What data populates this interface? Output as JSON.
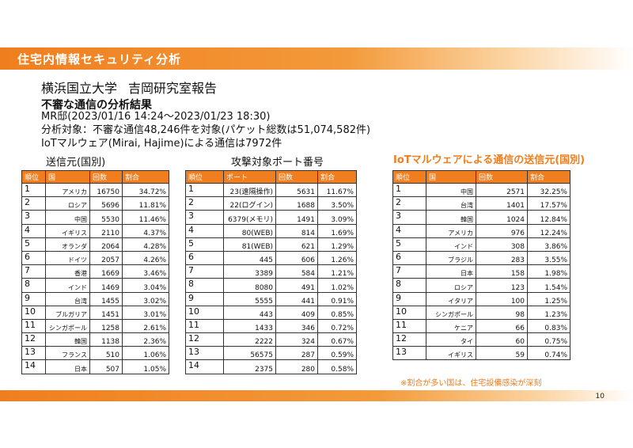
{
  "header": {
    "title": "住宅内情報セキュリティ分析"
  },
  "org": {
    "university": "横浜国立大学",
    "lab": "吉岡研究室報告"
  },
  "subtitle": "不審な通信の分析結果",
  "info": {
    "period": "MR邸(2023/01/16 14:24～2023/01/23 18:30)",
    "target": "分析対象：不審な通信48,246件を対象(パケット総数は51,074,582件)",
    "iot": "IoTマルウェア(Mirai, Hajime)による通信は7972件"
  },
  "sections": {
    "source": "送信元(国別)",
    "port": "攻撃対象ポート番号",
    "iot_source": "IoTマルウェアによる通信の送信元(国別)"
  },
  "tables": {
    "source": {
      "headers": [
        "順位",
        "国",
        "回数",
        "割合"
      ],
      "rows": [
        [
          "1",
          "アメリカ",
          "16750",
          "34.72%"
        ],
        [
          "2",
          "ロシア",
          "5696",
          "11.81%"
        ],
        [
          "3",
          "中国",
          "5530",
          "11.46%"
        ],
        [
          "4",
          "イギリス",
          "2110",
          "4.37%"
        ],
        [
          "5",
          "オランダ",
          "2064",
          "4.28%"
        ],
        [
          "6",
          "ドイツ",
          "2057",
          "4.26%"
        ],
        [
          "7",
          "香港",
          "1669",
          "3.46%"
        ],
        [
          "8",
          "インド",
          "1469",
          "3.04%"
        ],
        [
          "9",
          "台湾",
          "1455",
          "3.02%"
        ],
        [
          "10",
          "ブルガリア",
          "1451",
          "3.01%"
        ],
        [
          "11",
          "シンガポール",
          "1258",
          "2.61%"
        ],
        [
          "12",
          "韓国",
          "1138",
          "2.36%"
        ],
        [
          "13",
          "フランス",
          "510",
          "1.06%"
        ],
        [
          "14",
          "日本",
          "507",
          "1.05%"
        ]
      ]
    },
    "port": {
      "headers": [
        "順位",
        "ポート",
        "回数",
        "割合"
      ],
      "rows": [
        [
          "1",
          "23(遠隔操作)",
          "5631",
          "11.67%"
        ],
        [
          "2",
          "22(ログイン)",
          "1688",
          "3.50%"
        ],
        [
          "3",
          "6379(メモリ)",
          "1491",
          "3.09%"
        ],
        [
          "4",
          "80(WEB)",
          "814",
          "1.69%"
        ],
        [
          "5",
          "81(WEB)",
          "621",
          "1.29%"
        ],
        [
          "6",
          "445",
          "606",
          "1.26%"
        ],
        [
          "7",
          "3389",
          "584",
          "1.21%"
        ],
        [
          "8",
          "8080",
          "491",
          "1.02%"
        ],
        [
          "9",
          "5555",
          "441",
          "0.91%"
        ],
        [
          "10",
          "443",
          "409",
          "0.85%"
        ],
        [
          "11",
          "1433",
          "346",
          "0.72%"
        ],
        [
          "12",
          "2222",
          "324",
          "0.67%"
        ],
        [
          "13",
          "56575",
          "287",
          "0.59%"
        ],
        [
          "14",
          "2375",
          "280",
          "0.58%"
        ]
      ]
    },
    "iot": {
      "headers": [
        "順位",
        "国",
        "回数",
        "割合"
      ],
      "rows": [
        [
          "1",
          "中国",
          "2571",
          "32.25%"
        ],
        [
          "2",
          "台湾",
          "1401",
          "17.57%"
        ],
        [
          "3",
          "韓国",
          "1024",
          "12.84%"
        ],
        [
          "4",
          "アメリカ",
          "976",
          "12.24%"
        ],
        [
          "5",
          "インド",
          "308",
          "3.86%"
        ],
        [
          "6",
          "ブラジル",
          "283",
          "3.55%"
        ],
        [
          "7",
          "日本",
          "158",
          "1.98%"
        ],
        [
          "8",
          "ロシア",
          "123",
          "1.54%"
        ],
        [
          "9",
          "イタリア",
          "100",
          "1.25%"
        ],
        [
          "10",
          "シンガポール",
          "98",
          "1.23%"
        ],
        [
          "11",
          "ケニア",
          "66",
          "0.83%"
        ],
        [
          "12",
          "タイ",
          "60",
          "0.75%"
        ],
        [
          "13",
          "イギリス",
          "59",
          "0.74%"
        ]
      ]
    }
  },
  "note": "※割合が多い国は、住宅設備感染が深刻",
  "page_number": "10",
  "colors": {
    "accent": "#f07e1e"
  }
}
